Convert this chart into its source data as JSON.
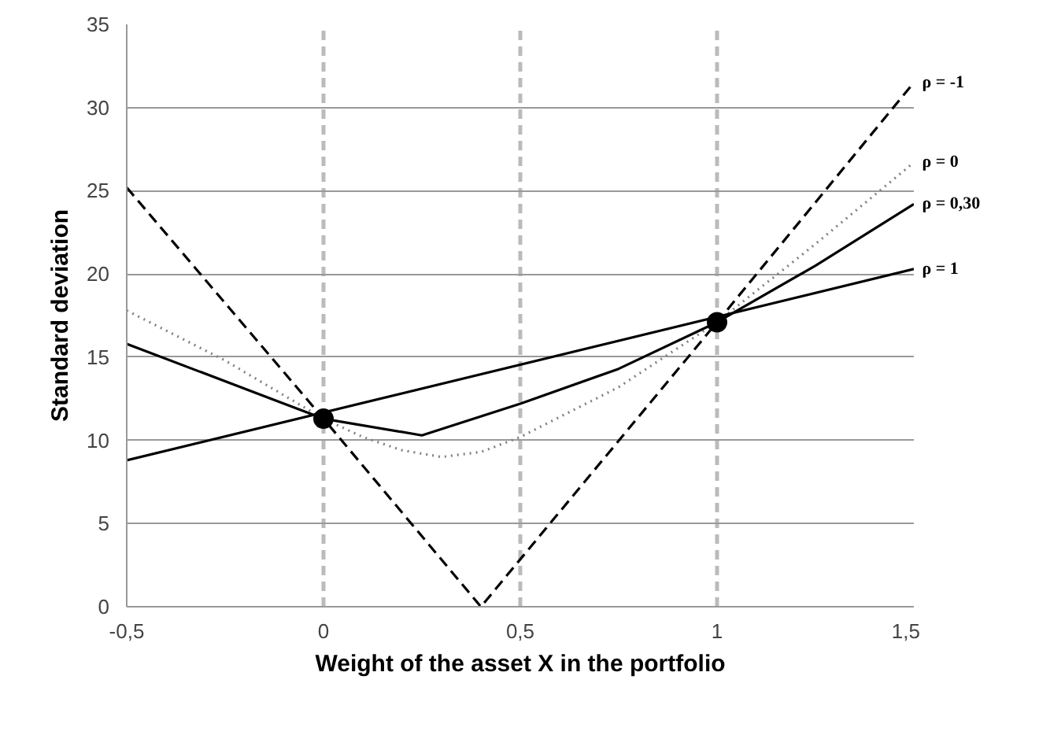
{
  "chart_data": {
    "type": "line",
    "xlabel": "Weight of the asset X in the portfolio",
    "ylabel": "Standard deviation",
    "xlim": [
      -0.5,
      1.5
    ],
    "xticks": [
      {
        "value": -0.5,
        "label": "-0,5"
      },
      0,
      {
        "value": 0.5,
        "label": "0,5"
      },
      1,
      {
        "value": 1.5,
        "label": "1,5"
      }
    ],
    "ylim": [
      0,
      35
    ],
    "yticks": [
      0,
      5,
      10,
      15,
      20,
      25,
      30,
      35
    ],
    "grid": true,
    "marker": "none",
    "series": [
      {
        "name": "ρ = -1",
        "color": "#000000",
        "line_style": "dashed",
        "x": [
          -0.5,
          0,
          0.4,
          1,
          1.5
        ],
        "values": [
          25.2,
          11.3,
          0,
          17.1,
          31.5
        ]
      },
      {
        "name": "ρ = 0",
        "color": "#808080",
        "line_style": "dotted",
        "x": [
          -0.5,
          -0.25,
          0,
          0.1,
          0.2,
          0.3,
          0.4,
          0.5,
          0.75,
          1,
          1.25,
          1.5
        ],
        "values": [
          17.8,
          14.8,
          11.3,
          10.2,
          9.4,
          9.0,
          9.3,
          10.2,
          13.2,
          17.1,
          21.8,
          26.7
        ]
      },
      {
        "name": "ρ = 0,30",
        "color": "#000000",
        "line_style": "solid",
        "x": [
          -0.5,
          0,
          0.25,
          0.5,
          0.75,
          1,
          1.25,
          1.5
        ],
        "values": [
          15.8,
          11.3,
          10.3,
          12.2,
          14.3,
          17.1,
          20.5,
          24.2
        ]
      },
      {
        "name": "ρ = 1",
        "color": "#000000",
        "line_style": "solid",
        "x": [
          -0.5,
          1.5
        ],
        "values": [
          8.8,
          20.3
        ]
      },
      {
        "type": "scatter",
        "marker": "circle",
        "color": "#000000",
        "x": [
          0,
          1
        ],
        "values": [
          11.3,
          17.1
        ]
      }
    ]
  }
}
